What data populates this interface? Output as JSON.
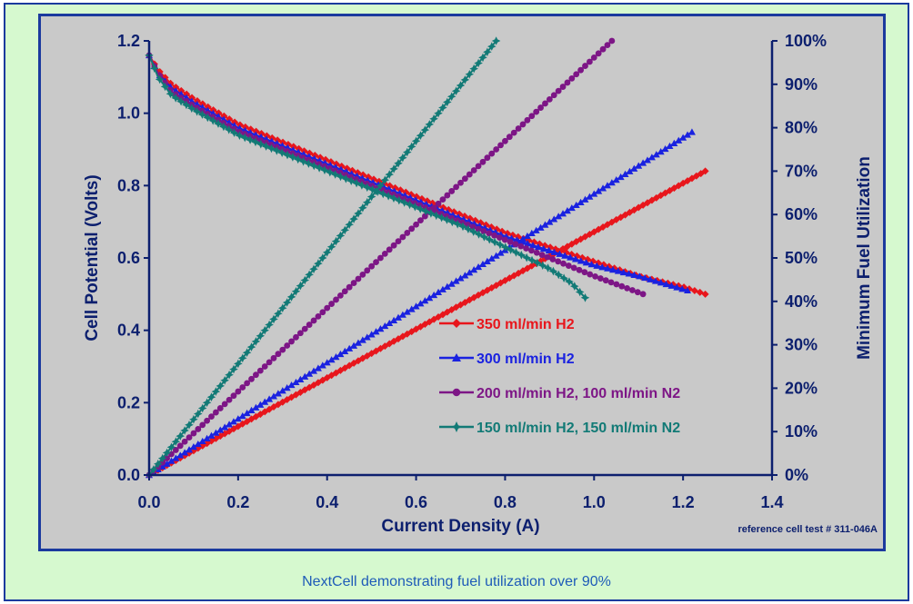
{
  "caption": "NextCell demonstrating fuel utilization over 90%",
  "colors": {
    "frame_border": "#1b3a9e",
    "frame_bg": "#d6f9cf",
    "plot_bg": "#c9c9c9",
    "axis_text": "#0c1f6e"
  },
  "chart_data": {
    "type": "line",
    "xlabel": "Current Density (A)",
    "ylabel": "Cell Potential (Volts)",
    "y2label": "Minimum Fuel Utilization",
    "annotation": "reference cell test # 311-046A",
    "xlim": [
      0,
      1.4
    ],
    "ylim": [
      0,
      1.2
    ],
    "y2lim": [
      0,
      1.0
    ],
    "x_ticks": [
      "0.0",
      "0.2",
      "0.4",
      "0.6",
      "0.8",
      "1.0",
      "1.2",
      "1.4"
    ],
    "y_ticks": [
      "0.0",
      "0.2",
      "0.4",
      "0.6",
      "0.8",
      "1.0",
      "1.2"
    ],
    "y2_ticks": [
      "0%",
      "10%",
      "20%",
      "30%",
      "40%",
      "50%",
      "60%",
      "70%",
      "80%",
      "90%",
      "100%"
    ],
    "grid": false,
    "legend_position": "lower-right",
    "series": [
      {
        "name": "350 ml/min H2",
        "color": "#e8161c",
        "marker": "diamond",
        "polarization": {
          "x": [
            0.0,
            0.02,
            0.05,
            0.1,
            0.2,
            0.3,
            0.4,
            0.5,
            0.6,
            0.7,
            0.8,
            0.9,
            1.0,
            1.1,
            1.2,
            1.25
          ],
          "y": [
            1.16,
            1.12,
            1.08,
            1.04,
            0.97,
            0.92,
            0.87,
            0.82,
            0.77,
            0.72,
            0.67,
            0.63,
            0.59,
            0.55,
            0.52,
            0.5
          ]
        },
        "utilization": {
          "x": [
            0.0,
            1.25
          ],
          "y": [
            0.0,
            0.7
          ]
        }
      },
      {
        "name": "300 ml/min H2",
        "color": "#1a22e0",
        "marker": "triangle",
        "polarization": {
          "x": [
            0.0,
            0.02,
            0.05,
            0.1,
            0.2,
            0.3,
            0.4,
            0.5,
            0.6,
            0.7,
            0.8,
            0.9,
            1.0,
            1.1,
            1.21
          ],
          "y": [
            1.16,
            1.11,
            1.07,
            1.03,
            0.96,
            0.91,
            0.86,
            0.81,
            0.76,
            0.71,
            0.66,
            0.62,
            0.58,
            0.55,
            0.51
          ]
        },
        "utilization": {
          "x": [
            0.0,
            1.22
          ],
          "y": [
            0.0,
            0.79
          ]
        }
      },
      {
        "name": "200 ml/min H2, 100 ml/min N2",
        "color": "#7d1686",
        "marker": "circle",
        "polarization": {
          "x": [
            0.0,
            0.02,
            0.05,
            0.1,
            0.2,
            0.3,
            0.4,
            0.5,
            0.6,
            0.7,
            0.8,
            0.9,
            1.0,
            1.11
          ],
          "y": [
            1.16,
            1.11,
            1.06,
            1.02,
            0.95,
            0.9,
            0.85,
            0.8,
            0.75,
            0.7,
            0.65,
            0.6,
            0.55,
            0.5
          ]
        },
        "utilization": {
          "x": [
            0.0,
            1.04
          ],
          "y": [
            0.0,
            1.0
          ]
        }
      },
      {
        "name": "150 ml/min H2, 150 ml/min N2",
        "color": "#127a76",
        "marker": "star",
        "polarization": {
          "x": [
            0.0,
            0.02,
            0.05,
            0.1,
            0.2,
            0.3,
            0.4,
            0.5,
            0.6,
            0.7,
            0.8,
            0.9,
            0.95,
            0.98
          ],
          "y": [
            1.16,
            1.1,
            1.05,
            1.01,
            0.94,
            0.89,
            0.84,
            0.79,
            0.74,
            0.69,
            0.63,
            0.57,
            0.53,
            0.49
          ]
        },
        "utilization": {
          "x": [
            0.0,
            0.78
          ],
          "y": [
            0.0,
            1.0
          ]
        }
      }
    ]
  }
}
